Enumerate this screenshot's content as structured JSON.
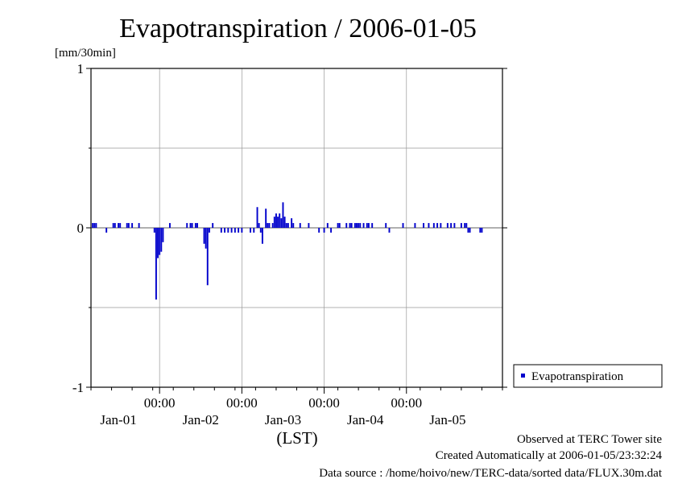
{
  "chart_data": {
    "type": "bar",
    "title": "Evapotranspiration / 2006-01-05",
    "ylabel": "[mm/30min]",
    "xlabel": "(LST)",
    "ylim": [
      -1,
      1
    ],
    "yticks": [
      {
        "value": 1,
        "label": "1"
      },
      {
        "value": 0,
        "label": "0"
      },
      {
        "value": -1,
        "label": "-1"
      }
    ],
    "xlim": [
      -20,
      100
    ],
    "x_unit": "hours since 2006-01-01 00:00 LST",
    "time_ticks": [
      {
        "x": 0,
        "label": "00:00"
      },
      {
        "x": 24,
        "label": "00:00"
      },
      {
        "x": 48,
        "label": "00:00"
      },
      {
        "x": 72,
        "label": "00:00"
      }
    ],
    "date_labels": [
      {
        "x": -12,
        "label": "Jan-01"
      },
      {
        "x": 12,
        "label": "Jan-02"
      },
      {
        "x": 36,
        "label": "Jan-03"
      },
      {
        "x": 60,
        "label": "Jan-04"
      },
      {
        "x": 84,
        "label": "Jan-05"
      }
    ],
    "grid": true,
    "legend_position": "right",
    "series": [
      {
        "name": "Evapotranspiration",
        "color": "#0000cc",
        "points": [
          [
            -19.5,
            0.03
          ],
          [
            -19,
            0.03
          ],
          [
            -18.5,
            0.03
          ],
          [
            -15.5,
            -0.03
          ],
          [
            -13.5,
            0.03
          ],
          [
            -13,
            0.03
          ],
          [
            -12,
            0.03
          ],
          [
            -11.5,
            0.03
          ],
          [
            -9.5,
            0.03
          ],
          [
            -9,
            0.03
          ],
          [
            -8,
            0.03
          ],
          [
            -6,
            0.03
          ],
          [
            -1.5,
            -0.03
          ],
          [
            -1,
            -0.45
          ],
          [
            -0.5,
            -0.19
          ],
          [
            0,
            -0.17
          ],
          [
            0.5,
            -0.15
          ],
          [
            1,
            -0.09
          ],
          [
            3,
            0.03
          ],
          [
            8,
            0.03
          ],
          [
            9,
            0.03
          ],
          [
            9.5,
            0.03
          ],
          [
            10.5,
            0.03
          ],
          [
            11,
            0.03
          ],
          [
            13,
            -0.1
          ],
          [
            13.5,
            -0.13
          ],
          [
            14,
            -0.36
          ],
          [
            14.5,
            -0.03
          ],
          [
            15.5,
            0.03
          ],
          [
            18,
            -0.03
          ],
          [
            19,
            -0.03
          ],
          [
            20,
            -0.03
          ],
          [
            21,
            -0.03
          ],
          [
            22,
            -0.03
          ],
          [
            23,
            -0.03
          ],
          [
            24,
            -0.03
          ],
          [
            26.5,
            -0.03
          ],
          [
            27.5,
            -0.03
          ],
          [
            28.5,
            0.13
          ],
          [
            29,
            0.03
          ],
          [
            29.5,
            -0.03
          ],
          [
            30,
            -0.1
          ],
          [
            31,
            0.12
          ],
          [
            31.5,
            0.03
          ],
          [
            32,
            0.03
          ],
          [
            33,
            0.03
          ],
          [
            33.5,
            0.07
          ],
          [
            34,
            0.09
          ],
          [
            34.5,
            0.07
          ],
          [
            35,
            0.09
          ],
          [
            35.5,
            0.06
          ],
          [
            36,
            0.16
          ],
          [
            36.5,
            0.07
          ],
          [
            37,
            0.03
          ],
          [
            37.5,
            0.03
          ],
          [
            38.5,
            0.06
          ],
          [
            39,
            0.03
          ],
          [
            41,
            0.03
          ],
          [
            43.5,
            0.03
          ],
          [
            46.5,
            -0.03
          ],
          [
            48,
            -0.03
          ],
          [
            49,
            0.03
          ],
          [
            50,
            -0.03
          ],
          [
            52,
            0.03
          ],
          [
            52.5,
            0.03
          ],
          [
            54.5,
            0.03
          ],
          [
            55.5,
            0.03
          ],
          [
            56,
            0.03
          ],
          [
            57,
            0.03
          ],
          [
            57.5,
            0.03
          ],
          [
            58,
            0.03
          ],
          [
            58.5,
            0.03
          ],
          [
            59.5,
            0.03
          ],
          [
            60.5,
            0.03
          ],
          [
            61,
            0.03
          ],
          [
            62,
            0.03
          ],
          [
            66,
            0.03
          ],
          [
            67,
            -0.03
          ],
          [
            71,
            0.03
          ],
          [
            74.5,
            0.03
          ],
          [
            77,
            0.03
          ],
          [
            78.5,
            0.03
          ],
          [
            80,
            0.03
          ],
          [
            81,
            0.03
          ],
          [
            82,
            0.03
          ],
          [
            84,
            0.03
          ],
          [
            85,
            0.03
          ],
          [
            86,
            0.03
          ],
          [
            88,
            0.03
          ],
          [
            89,
            0.03
          ],
          [
            89.5,
            0.03
          ],
          [
            90,
            -0.03
          ],
          [
            90.5,
            -0.03
          ],
          [
            93.5,
            -0.03
          ],
          [
            94,
            -0.03
          ]
        ]
      }
    ]
  },
  "footer": {
    "line1": "Observed at TERC Tower site",
    "line2": "Created Automatically at 2006-01-05/23:32:24",
    "line3": "Data source : /home/hoivo/new/TERC-data/sorted  data/FLUX.30m.dat"
  }
}
